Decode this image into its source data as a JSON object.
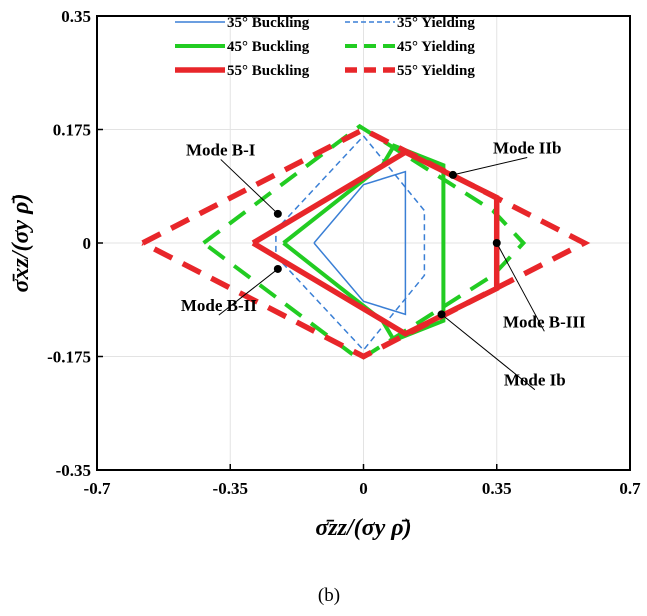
{
  "caption": "(b)",
  "chart_data": {
    "type": "line",
    "xlabel": "σ̄zz/(σy ρ̄)",
    "ylabel": "σ̄xz/(σy ρ̄)",
    "xlim": [
      -0.7,
      0.7
    ],
    "ylim": [
      -0.35,
      0.35
    ],
    "xticks": [
      "-0.7",
      "-0.35",
      "0",
      "0.35",
      "0.7"
    ],
    "yticks": [
      "-0.35",
      "-0.175",
      "0",
      "0.175",
      "0.35"
    ],
    "grid": true,
    "legend_position": "top-center",
    "series": [
      {
        "name": "35° Buckling",
        "color": "#3a7fd5",
        "dash": "solid",
        "width": 1.5,
        "points": [
          [
            -0.13,
            0
          ],
          [
            0,
            0.09
          ],
          [
            0.11,
            0.11
          ],
          [
            0.11,
            -0.11
          ],
          [
            0,
            -0.09
          ],
          [
            -0.13,
            0
          ]
        ]
      },
      {
        "name": "35° Yielding",
        "color": "#3a7fd5",
        "dash": "dashed",
        "width": 1.5,
        "points": [
          [
            0,
            0.165
          ],
          [
            0.16,
            0.05
          ],
          [
            0.16,
            -0.05
          ],
          [
            0,
            -0.165
          ],
          [
            -0.23,
            -0.02
          ],
          [
            -0.23,
            0.02
          ],
          [
            0,
            0.165
          ]
        ]
      },
      {
        "name": "45° Buckling",
        "color": "#22cc22",
        "dash": "solid",
        "width": 4,
        "points": [
          [
            -0.21,
            0
          ],
          [
            0.05,
            0.12
          ],
          [
            0.08,
            0.15
          ],
          [
            0.21,
            0.12
          ],
          [
            0.21,
            -0.12
          ],
          [
            0.08,
            -0.15
          ],
          [
            0.05,
            -0.12
          ],
          [
            -0.21,
            0
          ]
        ]
      },
      {
        "name": "45° Yielding",
        "color": "#22cc22",
        "dash": "dashed",
        "width": 4,
        "points": [
          [
            -0.42,
            0
          ],
          [
            -0.01,
            0.18
          ],
          [
            0.34,
            0.05
          ],
          [
            0.42,
            0
          ],
          [
            0.34,
            -0.05
          ],
          [
            -0.01,
            -0.18
          ],
          [
            -0.42,
            0
          ]
        ]
      },
      {
        "name": "55° Buckling",
        "color": "#e8262a",
        "dash": "solid",
        "width": 5.5,
        "points": [
          [
            -0.29,
            0
          ],
          [
            0.11,
            0.14
          ],
          [
            0.35,
            0.07
          ],
          [
            0.35,
            -0.07
          ],
          [
            0.11,
            -0.14
          ],
          [
            -0.29,
            0
          ]
        ]
      },
      {
        "name": "55° Yielding",
        "color": "#e8262a",
        "dash": "dashed",
        "width": 5.5,
        "points": [
          [
            -0.58,
            0
          ],
          [
            0,
            0.175
          ],
          [
            0.58,
            0
          ],
          [
            0,
            -0.175
          ],
          [
            -0.58,
            0
          ]
        ]
      }
    ],
    "annotations": [
      {
        "text": "Mode B-I",
        "point": [
          -0.225,
          0.045
        ],
        "text_at": [
          -0.375,
          0.135
        ]
      },
      {
        "text": "Mode IIb",
        "point": [
          0.235,
          0.105
        ],
        "text_at": [
          0.43,
          0.138
        ]
      },
      {
        "text": "Mode B-II",
        "point": [
          -0.225,
          -0.04
        ],
        "text_at": [
          -0.38,
          -0.105
        ]
      },
      {
        "text": "Mode B-III",
        "point": [
          0.35,
          0
        ],
        "text_at": [
          0.475,
          -0.13
        ]
      },
      {
        "text": "Mode Ib",
        "point": [
          0.205,
          -0.11
        ],
        "text_at": [
          0.45,
          -0.22
        ]
      }
    ]
  }
}
